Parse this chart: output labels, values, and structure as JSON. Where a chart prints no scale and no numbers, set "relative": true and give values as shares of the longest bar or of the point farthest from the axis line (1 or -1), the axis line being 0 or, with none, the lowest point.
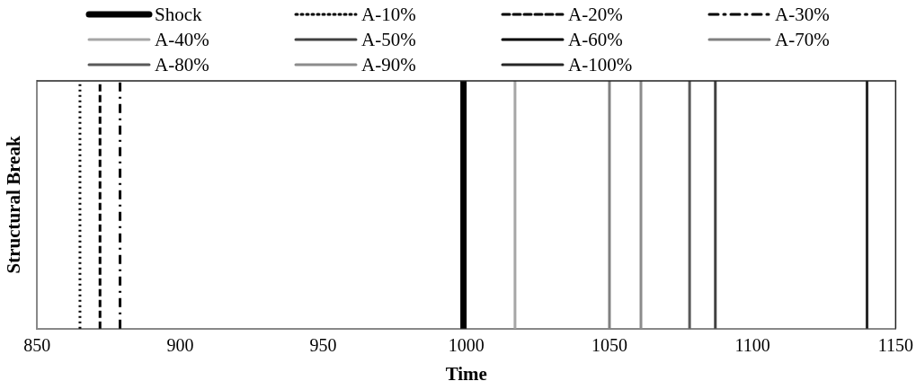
{
  "chart_data": {
    "type": "line",
    "xlabel": "Time",
    "ylabel": "Structural Break",
    "relative": true,
    "xlim": [
      850,
      1150
    ],
    "xticks": [
      850,
      900,
      950,
      1000,
      1050,
      1100,
      1150
    ],
    "grid": false,
    "legend": "top",
    "marker": "none",
    "series": [
      {
        "name": "Shock",
        "color": "#000000",
        "line_style": "solid",
        "x": [
          999,
          999
        ],
        "values": [
          0,
          1
        ]
      },
      {
        "name": "A-10%",
        "color": "#000000",
        "line_style": "dotted",
        "x": [
          865,
          865
        ],
        "values": [
          0,
          1
        ]
      },
      {
        "name": "A-20%",
        "color": "#000000",
        "line_style": "dashed",
        "x": [
          872,
          872
        ],
        "values": [
          0,
          1
        ]
      },
      {
        "name": "A-30%",
        "color": "#000000",
        "line_style": "dashdot",
        "x": [
          879,
          879
        ],
        "values": [
          0,
          1
        ]
      },
      {
        "name": "A-40%",
        "color": "#a6a6a6",
        "line_style": "solid",
        "x": [
          1017,
          1017
        ],
        "values": [
          0,
          1
        ]
      },
      {
        "name": "A-50%",
        "color": "#404040",
        "line_style": "solid",
        "x": [
          1087,
          1087
        ],
        "values": [
          0,
          1
        ]
      },
      {
        "name": "A-60%",
        "color": "#000000",
        "line_style": "solid",
        "x": [
          null,
          null
        ],
        "values": [
          null,
          null
        ]
      },
      {
        "name": "A-70%",
        "color": "#808080",
        "line_style": "solid",
        "x": [
          1050,
          1050
        ],
        "values": [
          0,
          1
        ]
      },
      {
        "name": "A-80%",
        "color": "#595959",
        "line_style": "solid",
        "x": [
          1078,
          1078
        ],
        "values": [
          0,
          1
        ]
      },
      {
        "name": "A-90%",
        "color": "#8c8c8c",
        "line_style": "solid",
        "x": [
          1061,
          1061
        ],
        "values": [
          0,
          1
        ]
      },
      {
        "name": "A-100%",
        "color": "#262626",
        "line_style": "solid",
        "x": [
          1140,
          1140
        ],
        "values": [
          0,
          1
        ]
      }
    ]
  }
}
